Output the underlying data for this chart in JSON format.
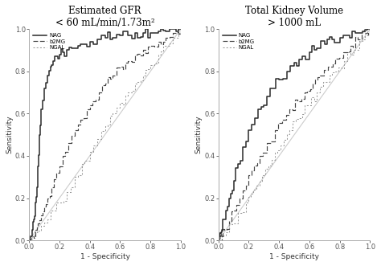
{
  "title1": "Estimated GFR\n< 60 mL/min/1.73m²",
  "title2": "Total Kidney Volume\n> 1000 mL",
  "xlabel": "1 - Specificity",
  "ylabel": "Sensitivity",
  "legend_labels": [
    "NAG",
    "b2MG",
    "NGAL"
  ],
  "bg_color": "#ffffff",
  "line_color_NAG": "#2a2a2a",
  "line_color_b2MG": "#444444",
  "line_color_NGAL": "#999999",
  "diag_color": "#cccccc",
  "tick_labels": [
    "0.0",
    "0.2",
    "0.4",
    "0.6",
    "0.8",
    "1.0"
  ],
  "tick_vals": [
    0.0,
    0.2,
    0.4,
    0.6,
    0.8,
    1.0
  ],
  "p1_nag_fpr": [
    0.0,
    0.02,
    0.03,
    0.04,
    0.05,
    0.06,
    0.07,
    0.08,
    0.1,
    0.12,
    0.14,
    0.16,
    0.18,
    0.2,
    0.22,
    0.25,
    0.28,
    0.32,
    0.36,
    0.4,
    0.45,
    0.5,
    0.55,
    0.6,
    0.65,
    0.7,
    0.75,
    0.8,
    0.85,
    0.9,
    0.95,
    1.0
  ],
  "p1_nag_tpr": [
    0.0,
    0.05,
    0.1,
    0.18,
    0.25,
    0.35,
    0.5,
    0.62,
    0.72,
    0.78,
    0.82,
    0.85,
    0.87,
    0.88,
    0.89,
    0.9,
    0.91,
    0.92,
    0.93,
    0.94,
    0.95,
    0.96,
    0.96,
    0.97,
    0.97,
    0.98,
    0.98,
    0.98,
    0.99,
    0.99,
    1.0,
    1.0
  ],
  "p1_b2mg_fpr": [
    0.0,
    0.02,
    0.04,
    0.06,
    0.08,
    0.1,
    0.12,
    0.15,
    0.18,
    0.22,
    0.26,
    0.3,
    0.34,
    0.38,
    0.42,
    0.46,
    0.5,
    0.55,
    0.6,
    0.65,
    0.7,
    0.75,
    0.8,
    0.85,
    0.9,
    0.95,
    1.0
  ],
  "p1_b2mg_tpr": [
    0.0,
    0.02,
    0.05,
    0.08,
    0.12,
    0.16,
    0.2,
    0.25,
    0.32,
    0.4,
    0.46,
    0.52,
    0.57,
    0.62,
    0.66,
    0.7,
    0.74,
    0.78,
    0.82,
    0.85,
    0.88,
    0.9,
    0.92,
    0.94,
    0.96,
    0.98,
    1.0
  ],
  "p1_ngal_fpr": [
    0.0,
    0.02,
    0.05,
    0.08,
    0.12,
    0.16,
    0.2,
    0.25,
    0.3,
    0.35,
    0.4,
    0.45,
    0.5,
    0.55,
    0.6,
    0.65,
    0.7,
    0.75,
    0.8,
    0.85,
    0.9,
    0.95,
    1.0
  ],
  "p1_ngal_tpr": [
    0.0,
    0.02,
    0.04,
    0.07,
    0.1,
    0.14,
    0.18,
    0.23,
    0.3,
    0.36,
    0.42,
    0.48,
    0.54,
    0.6,
    0.65,
    0.7,
    0.74,
    0.78,
    0.83,
    0.88,
    0.92,
    0.96,
    1.0
  ],
  "p2_nag_fpr": [
    0.0,
    0.01,
    0.02,
    0.04,
    0.06,
    0.08,
    0.1,
    0.13,
    0.16,
    0.2,
    0.24,
    0.28,
    0.32,
    0.36,
    0.4,
    0.45,
    0.5,
    0.55,
    0.6,
    0.65,
    0.7,
    0.75,
    0.8,
    0.85,
    0.9,
    0.95,
    1.0
  ],
  "p2_nag_tpr": [
    0.0,
    0.02,
    0.05,
    0.1,
    0.16,
    0.22,
    0.28,
    0.36,
    0.44,
    0.52,
    0.58,
    0.63,
    0.68,
    0.72,
    0.76,
    0.8,
    0.84,
    0.87,
    0.89,
    0.91,
    0.93,
    0.95,
    0.96,
    0.97,
    0.98,
    0.99,
    1.0
  ],
  "p2_b2mg_fpr": [
    0.0,
    0.02,
    0.04,
    0.07,
    0.1,
    0.14,
    0.18,
    0.22,
    0.27,
    0.32,
    0.37,
    0.42,
    0.47,
    0.52,
    0.57,
    0.62,
    0.67,
    0.72,
    0.77,
    0.82,
    0.87,
    0.92,
    0.97,
    1.0
  ],
  "p2_b2mg_tpr": [
    0.0,
    0.02,
    0.05,
    0.09,
    0.14,
    0.2,
    0.26,
    0.33,
    0.4,
    0.46,
    0.52,
    0.57,
    0.62,
    0.66,
    0.7,
    0.74,
    0.78,
    0.82,
    0.86,
    0.89,
    0.92,
    0.95,
    0.98,
    1.0
  ],
  "p2_ngal_fpr": [
    0.0,
    0.02,
    0.05,
    0.09,
    0.13,
    0.18,
    0.23,
    0.29,
    0.35,
    0.41,
    0.47,
    0.53,
    0.59,
    0.65,
    0.71,
    0.77,
    0.83,
    0.89,
    0.95,
    1.0
  ],
  "p2_ngal_tpr": [
    0.0,
    0.02,
    0.04,
    0.08,
    0.13,
    0.18,
    0.24,
    0.31,
    0.38,
    0.45,
    0.52,
    0.58,
    0.64,
    0.7,
    0.75,
    0.8,
    0.85,
    0.9,
    0.95,
    1.0
  ]
}
